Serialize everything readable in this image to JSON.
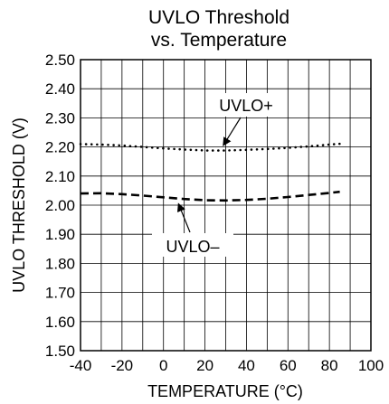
{
  "chart_data": {
    "type": "line",
    "title_lines": [
      "UVLO Threshold",
      "vs. Temperature"
    ],
    "xlabel": "TEMPERATURE (°C)",
    "ylabel": "UVLO THRESHOLD (V)",
    "xlim": [
      -40,
      100
    ],
    "ylim": [
      1.5,
      2.5
    ],
    "x_ticks": [
      -40,
      -20,
      0,
      20,
      40,
      60,
      80,
      100
    ],
    "y_ticks": [
      1.5,
      1.6,
      1.7,
      1.8,
      1.9,
      2.0,
      2.1,
      2.2,
      2.3,
      2.4,
      2.5
    ],
    "x_tick_labels": [
      "-40",
      "-20",
      "0",
      "20",
      "40",
      "60",
      "80",
      "100"
    ],
    "y_tick_labels": [
      "1.50",
      "1.60",
      "1.70",
      "1.80",
      "1.90",
      "2.00",
      "2.10",
      "2.20",
      "2.30",
      "2.40",
      "2.50"
    ],
    "grid": true,
    "series": [
      {
        "name": "UVLO+",
        "style": "dotted",
        "x": [
          -40,
          -30,
          -20,
          -10,
          0,
          10,
          20,
          30,
          40,
          50,
          60,
          70,
          80,
          85
        ],
        "values": [
          2.21,
          2.208,
          2.205,
          2.2,
          2.195,
          2.191,
          2.188,
          2.188,
          2.19,
          2.193,
          2.197,
          2.202,
          2.208,
          2.211
        ]
      },
      {
        "name": "UVLO–",
        "style": "dashed",
        "x": [
          -40,
          -30,
          -20,
          -10,
          0,
          10,
          20,
          30,
          40,
          50,
          60,
          70,
          80,
          85
        ],
        "values": [
          2.04,
          2.041,
          2.038,
          2.033,
          2.027,
          2.021,
          2.017,
          2.016,
          2.018,
          2.022,
          2.028,
          2.035,
          2.042,
          2.046
        ]
      }
    ],
    "annotations": [
      {
        "text": "UVLO+",
        "series": 0,
        "point_x": 30,
        "point_y": 2.19
      },
      {
        "text": "UVLO–",
        "series": 1,
        "point_x": 7,
        "point_y": 2.02
      }
    ]
  }
}
